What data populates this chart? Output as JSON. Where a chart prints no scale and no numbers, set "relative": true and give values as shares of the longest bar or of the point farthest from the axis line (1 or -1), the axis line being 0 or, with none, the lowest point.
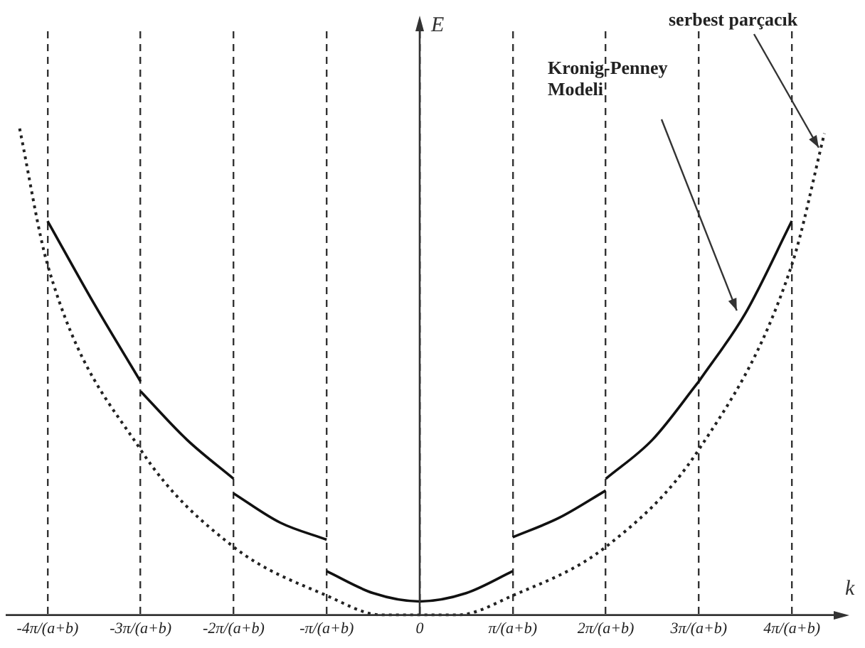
{
  "chart_data": {
    "type": "line",
    "relative": true,
    "xlabel": "k",
    "ylabel": "E",
    "xlim": [
      -4.45,
      4.45
    ],
    "xticks": [
      {
        "value": -4,
        "label": "-4π/(a+b)"
      },
      {
        "value": -3,
        "label": "-3π/(a+b)"
      },
      {
        "value": -2,
        "label": "-2π/(a+b)"
      },
      {
        "value": -1,
        "label": "-π/(a+b)"
      },
      0,
      {
        "value": 1,
        "label": "π/(a+b)"
      },
      {
        "value": 2,
        "label": "2π/(a+b)"
      },
      {
        "value": 3,
        "label": "3π/(a+b)"
      },
      {
        "value": 4,
        "label": "4π/(a+b)"
      }
    ],
    "grid": "x",
    "marker": "none",
    "series": [
      {
        "color": "#222222",
        "line_style": "dotted",
        "x": [
          -4.3,
          -4,
          -3,
          -2,
          -1,
          -0.4,
          0,
          0.4,
          1,
          2,
          3,
          4,
          4.35
        ],
        "values": [
          1,
          0.72,
          0.34,
          0.14,
          0.04,
          0,
          0,
          0,
          0.04,
          0.14,
          0.34,
          0.72,
          0.99
        ]
      },
      {
        "color": "#111111",
        "line_style": "solid",
        "x": [
          -4,
          -3.5,
          -3
        ],
        "values": [
          0.81,
          0.64,
          0.48
        ]
      },
      {
        "color": "#111111",
        "line_style": "solid",
        "x": [
          -3,
          -2.5,
          -2
        ],
        "values": [
          0.46,
          0.36,
          0.28
        ]
      },
      {
        "color": "#111111",
        "line_style": "solid",
        "x": [
          -2,
          -1.5,
          -1
        ],
        "values": [
          0.25,
          0.19,
          0.155
        ]
      },
      {
        "color": "#111111",
        "line_style": "solid",
        "x": [
          -1,
          -0.5,
          0,
          0.5,
          1
        ],
        "values": [
          0.09,
          0.045,
          0.028,
          0.045,
          0.09
        ]
      },
      {
        "color": "#111111",
        "line_style": "solid",
        "x": [
          1,
          1.5,
          2
        ],
        "values": [
          0.16,
          0.2,
          0.256
        ]
      },
      {
        "color": "#111111",
        "line_style": "solid",
        "x": [
          2,
          2.5,
          3
        ],
        "values": [
          0.28,
          0.36,
          0.48
        ]
      },
      {
        "color": "#111111",
        "line_style": "solid",
        "x": [
          3,
          3.5,
          4
        ],
        "values": [
          0.48,
          0.62,
          0.81
        ]
      }
    ],
    "annotations": [
      "serbest parçacık",
      "Kronig-Penney Modeli"
    ]
  }
}
